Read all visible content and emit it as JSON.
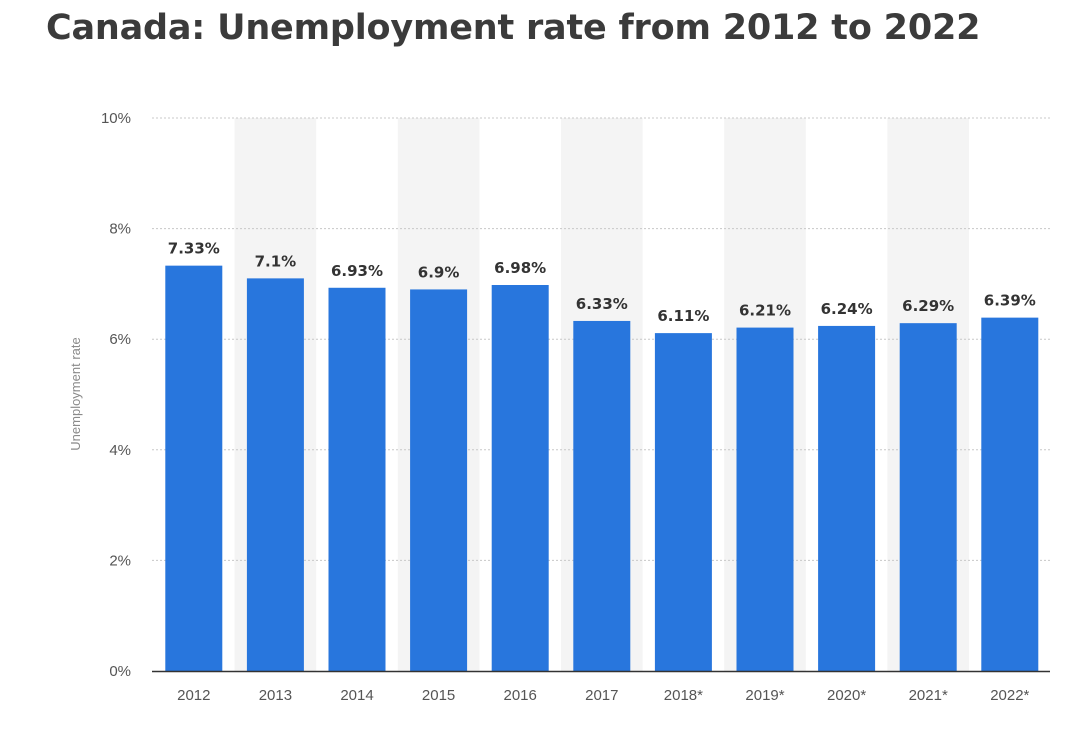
{
  "title": "Canada: Unemployment rate from 2012 to 2022",
  "chart_data": {
    "type": "bar",
    "title": "Canada: Unemployment rate from 2012 to 2022",
    "xlabel": "",
    "ylabel": "Unemployment rate",
    "categories": [
      "2012",
      "2013",
      "2014",
      "2015",
      "2016",
      "2017",
      "2018*",
      "2019*",
      "2020*",
      "2021*",
      "2022*"
    ],
    "values": [
      7.33,
      7.1,
      6.93,
      6.9,
      6.98,
      6.33,
      6.11,
      6.21,
      6.24,
      6.29,
      6.39
    ],
    "data_labels": [
      "7.33%",
      "7.1%",
      "6.93%",
      "6.9%",
      "6.98%",
      "6.33%",
      "6.11%",
      "6.21%",
      "6.24%",
      "6.29%",
      "6.39%"
    ],
    "ylim": [
      0,
      10
    ],
    "yticks": [
      0,
      2,
      4,
      6,
      8,
      10
    ],
    "ytick_labels": [
      "0%",
      "2%",
      "4%",
      "6%",
      "8%",
      "10%"
    ],
    "grid": true,
    "legend": "none",
    "colors": {
      "bar": "#2876dd",
      "band": "#f4f4f4",
      "grid": "#c8c8c8",
      "axis": "#333333"
    }
  }
}
